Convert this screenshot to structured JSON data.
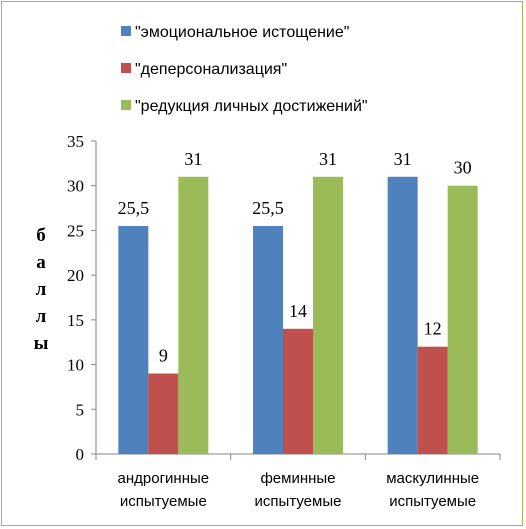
{
  "chart_data": {
    "type": "bar",
    "categories": [
      [
        "андрогинные",
        "испытуемые"
      ],
      [
        "феминные",
        "испытуемые"
      ],
      [
        "маскулинные",
        "испытуемые"
      ]
    ],
    "series": [
      {
        "name": "\"эмоциональное истощение\"",
        "color": "#4f81bd",
        "values": [
          25.5,
          25.5,
          31
        ],
        "labels": [
          "25,5",
          "25,5",
          "31"
        ]
      },
      {
        "name": "\"деперсонализация\"",
        "color": "#c0504d",
        "values": [
          9,
          14,
          12
        ],
        "labels": [
          "9",
          "14",
          "12"
        ]
      },
      {
        "name": "\"редукция личных достижений\"",
        "color": "#9bbb59",
        "values": [
          31,
          31,
          30
        ],
        "labels": [
          "31",
          "31",
          "30"
        ]
      }
    ],
    "ylabel": "баллы",
    "ylim": [
      0,
      35
    ],
    "yticks": [
      0,
      5,
      10,
      15,
      20,
      25,
      30,
      35
    ],
    "grid": false,
    "legend_position": "top"
  }
}
